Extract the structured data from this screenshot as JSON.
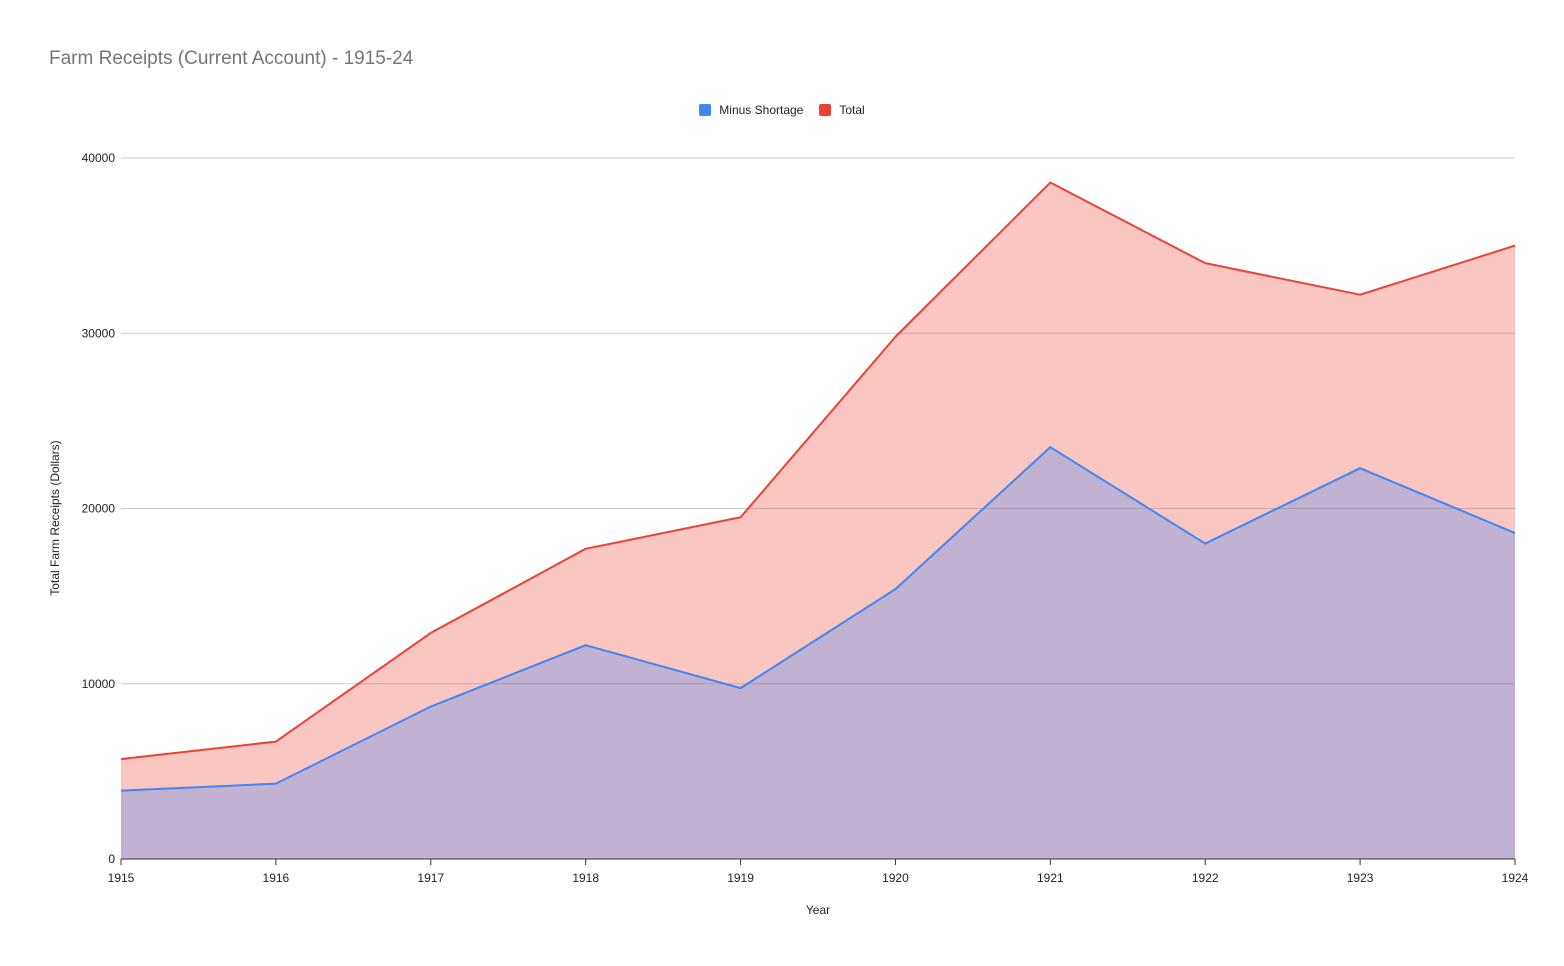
{
  "chart_data": {
    "type": "area",
    "title": "Farm Receipts (Current Account) - 1915-24",
    "xlabel": "Year",
    "ylabel": "Total Farm Receipts (Dollars)",
    "x": [
      "1915",
      "1916",
      "1917",
      "1918",
      "1919",
      "1920",
      "1921",
      "1922",
      "1923",
      "1924"
    ],
    "ylim": [
      0,
      40000
    ],
    "yticks": [
      "0",
      "10000",
      "20000",
      "30000",
      "40000"
    ],
    "grid": true,
    "legend_position": "top",
    "series": [
      {
        "name": "Minus Shortage",
        "color": "#4285f4",
        "values": [
          3900,
          4300,
          8700,
          12200,
          9750,
          15400,
          23500,
          18000,
          22300,
          18600
        ]
      },
      {
        "name": "Total",
        "color": "#ea4335",
        "values": [
          5700,
          6700,
          12900,
          17700,
          19500,
          29800,
          38600,
          34000,
          32200,
          35000
        ]
      }
    ]
  }
}
